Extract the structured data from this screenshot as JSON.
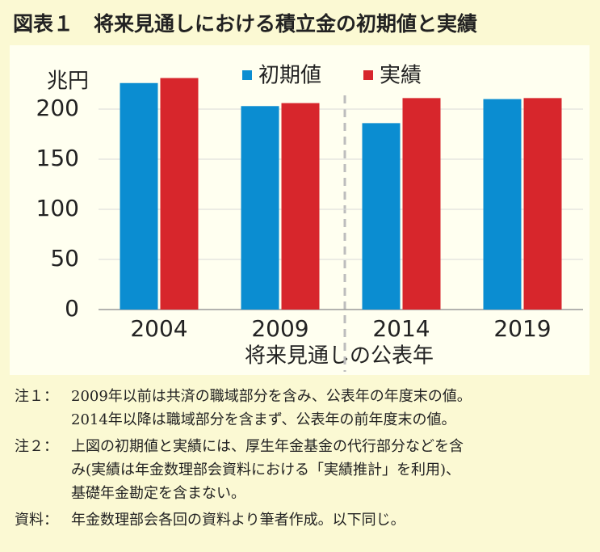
{
  "chart_data": {
    "type": "bar",
    "title": "図表１　将来見通しにおける積立金の初期値と実績",
    "y_label": "兆円",
    "x_label": "将来見通しの公表年",
    "categories": [
      "2004",
      "2009",
      "2014",
      "2019"
    ],
    "series": [
      {
        "name": "初期値",
        "color": "#0b8dd1",
        "values": [
          226,
          203,
          186,
          210
        ]
      },
      {
        "name": "実績",
        "color": "#d7262c",
        "values": [
          231,
          206,
          211,
          211
        ]
      }
    ],
    "ylim": [
      0,
      250
    ],
    "yticks": [
      0,
      50,
      100,
      150,
      200
    ],
    "grid": true
  },
  "notes": [
    {
      "label": "注１：",
      "lines": [
        "2009年以前は共済の職域部分を含み、公表年の年度末の値。",
        "2014年以降は職域部分を含まず、公表年の前年度末の値。"
      ]
    },
    {
      "label": "注２：",
      "lines": [
        "上図の初期値と実績には、厚生年金基金の代行部分などを含",
        "み(実績は年金数理部会資料における「実績推計」を利用)、",
        "基礎年金勘定を含まない。"
      ]
    },
    {
      "label": "資料：",
      "lines": [
        "年金数理部会各回の資料より筆者作成。以下同じ。"
      ]
    }
  ]
}
